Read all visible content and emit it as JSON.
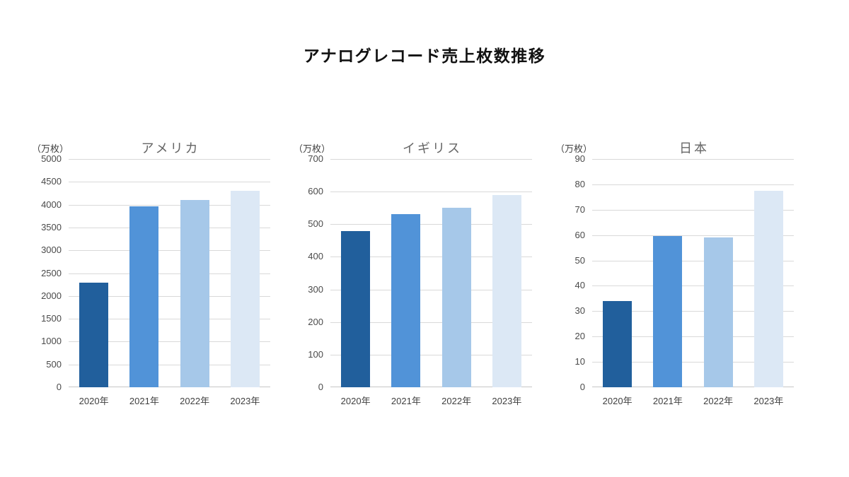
{
  "page": {
    "title": "アナログレコード売上枚数推移"
  },
  "colors": {
    "bar_2020": "#215f9c",
    "bar_2021": "#5193d8",
    "bar_2022": "#a6c8e9",
    "bar_2023": "#dce8f5",
    "gridline": "#d9d9d9",
    "axis_line": "#c6c6c6",
    "tick_label": "#4a4a4a",
    "chart_title": "#666666",
    "main_title": "#111111"
  },
  "chart_data": [
    {
      "type": "bar",
      "id": "usa",
      "title": "アメリカ",
      "unit_label": "（万枚）",
      "categories": [
        "2020年",
        "2021年",
        "2022年",
        "2023年"
      ],
      "values": [
        2290,
        3960,
        4110,
        4310
      ],
      "ylim": [
        0,
        5000
      ],
      "yticks": [
        0,
        500,
        1000,
        1500,
        2000,
        2500,
        3000,
        3500,
        4000,
        4500,
        5000
      ],
      "grid": true,
      "legend": "none",
      "bar_colors": [
        "#215f9c",
        "#5193d8",
        "#a6c8e9",
        "#dce8f5"
      ]
    },
    {
      "type": "bar",
      "id": "uk",
      "title": "イギリス",
      "unit_label": "（万枚）",
      "categories": [
        "2020年",
        "2021年",
        "2022年",
        "2023年"
      ],
      "values": [
        480,
        530,
        550,
        590
      ],
      "ylim": [
        0,
        700
      ],
      "yticks": [
        0,
        100,
        200,
        300,
        400,
        500,
        600,
        700
      ],
      "grid": true,
      "legend": "none",
      "bar_colors": [
        "#215f9c",
        "#5193d8",
        "#a6c8e9",
        "#dce8f5"
      ]
    },
    {
      "type": "bar",
      "id": "japan",
      "title": "日本",
      "unit_label": "（万枚）",
      "categories": [
        "2020年",
        "2021年",
        "2022年",
        "2023年"
      ],
      "values": [
        34,
        59.5,
        59,
        77.5
      ],
      "ylim": [
        0,
        90
      ],
      "yticks": [
        0,
        10,
        20,
        30,
        40,
        50,
        60,
        70,
        80,
        90
      ],
      "grid": true,
      "legend": "none",
      "bar_colors": [
        "#215f9c",
        "#5193d8",
        "#a6c8e9",
        "#dce8f5"
      ]
    }
  ]
}
